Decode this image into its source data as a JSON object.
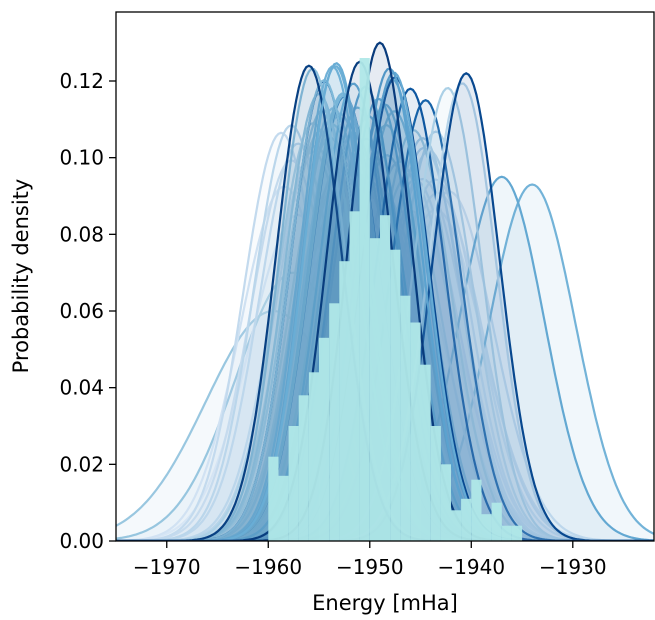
{
  "chart_data": {
    "type": "area",
    "xlabel": "Energy [mHa]",
    "ylabel": "Probability density",
    "xlim": [
      -1975,
      -1922
    ],
    "ylim": [
      0,
      0.138
    ],
    "x_ticks": [
      -1970,
      -1960,
      -1950,
      -1940,
      -1930
    ],
    "x_tick_labels": [
      "−1970",
      "−1960",
      "−1950",
      "−1940",
      "−1930"
    ],
    "y_ticks": [
      0.0,
      0.02,
      0.04,
      0.06,
      0.08,
      0.1,
      0.12
    ],
    "y_tick_labels": [
      "0.00",
      "0.02",
      "0.04",
      "0.06",
      "0.08",
      "0.10",
      "0.12"
    ],
    "grid": false,
    "legend": "none",
    "colormap": [
      "#e8f1fa",
      "#c6dbef",
      "#9ecae1",
      "#6baed6",
      "#3182bd",
      "#08519c",
      "#08306b"
    ],
    "histogram_color": "#b0e8e8",
    "gaussian_curves": [
      {
        "mean": -1959.5,
        "peak": 0.06
      },
      {
        "mean": -1957.5,
        "peak": 0.07
      },
      {
        "mean": -1956.0,
        "peak": 0.124
      },
      {
        "mean": -1954.5,
        "peak": 0.12
      },
      {
        "mean": -1952.5,
        "peak": 0.116
      },
      {
        "mean": -1951.0,
        "peak": 0.125
      },
      {
        "mean": -1949.0,
        "peak": 0.13
      },
      {
        "mean": -1947.5,
        "peak": 0.121
      },
      {
        "mean": -1946.0,
        "peak": 0.118
      },
      {
        "mean": -1944.5,
        "peak": 0.115
      },
      {
        "mean": -1940.5,
        "peak": 0.122
      },
      {
        "mean": -1937.0,
        "peak": 0.095
      },
      {
        "mean": -1934.0,
        "peak": 0.093
      }
    ],
    "histogram_bins": {
      "x": [
        -1959.5,
        -1958.5,
        -1957.5,
        -1956.5,
        -1955.5,
        -1954.5,
        -1953.5,
        -1952.5,
        -1951.5,
        -1950.5,
        -1949.5,
        -1948.5,
        -1947.5,
        -1946.5,
        -1945.5,
        -1944.5,
        -1943.5,
        -1942.5,
        -1941.5,
        -1940.5,
        -1939.5,
        -1938.5,
        -1937.5,
        -1936.5,
        -1935.5
      ],
      "y": [
        0.022,
        0.017,
        0.03,
        0.038,
        0.044,
        0.053,
        0.062,
        0.073,
        0.086,
        0.126,
        0.079,
        0.085,
        0.076,
        0.064,
        0.057,
        0.046,
        0.03,
        0.02,
        0.008,
        0.011,
        0.016,
        0.007,
        0.01,
        0.004,
        0.004
      ]
    }
  }
}
